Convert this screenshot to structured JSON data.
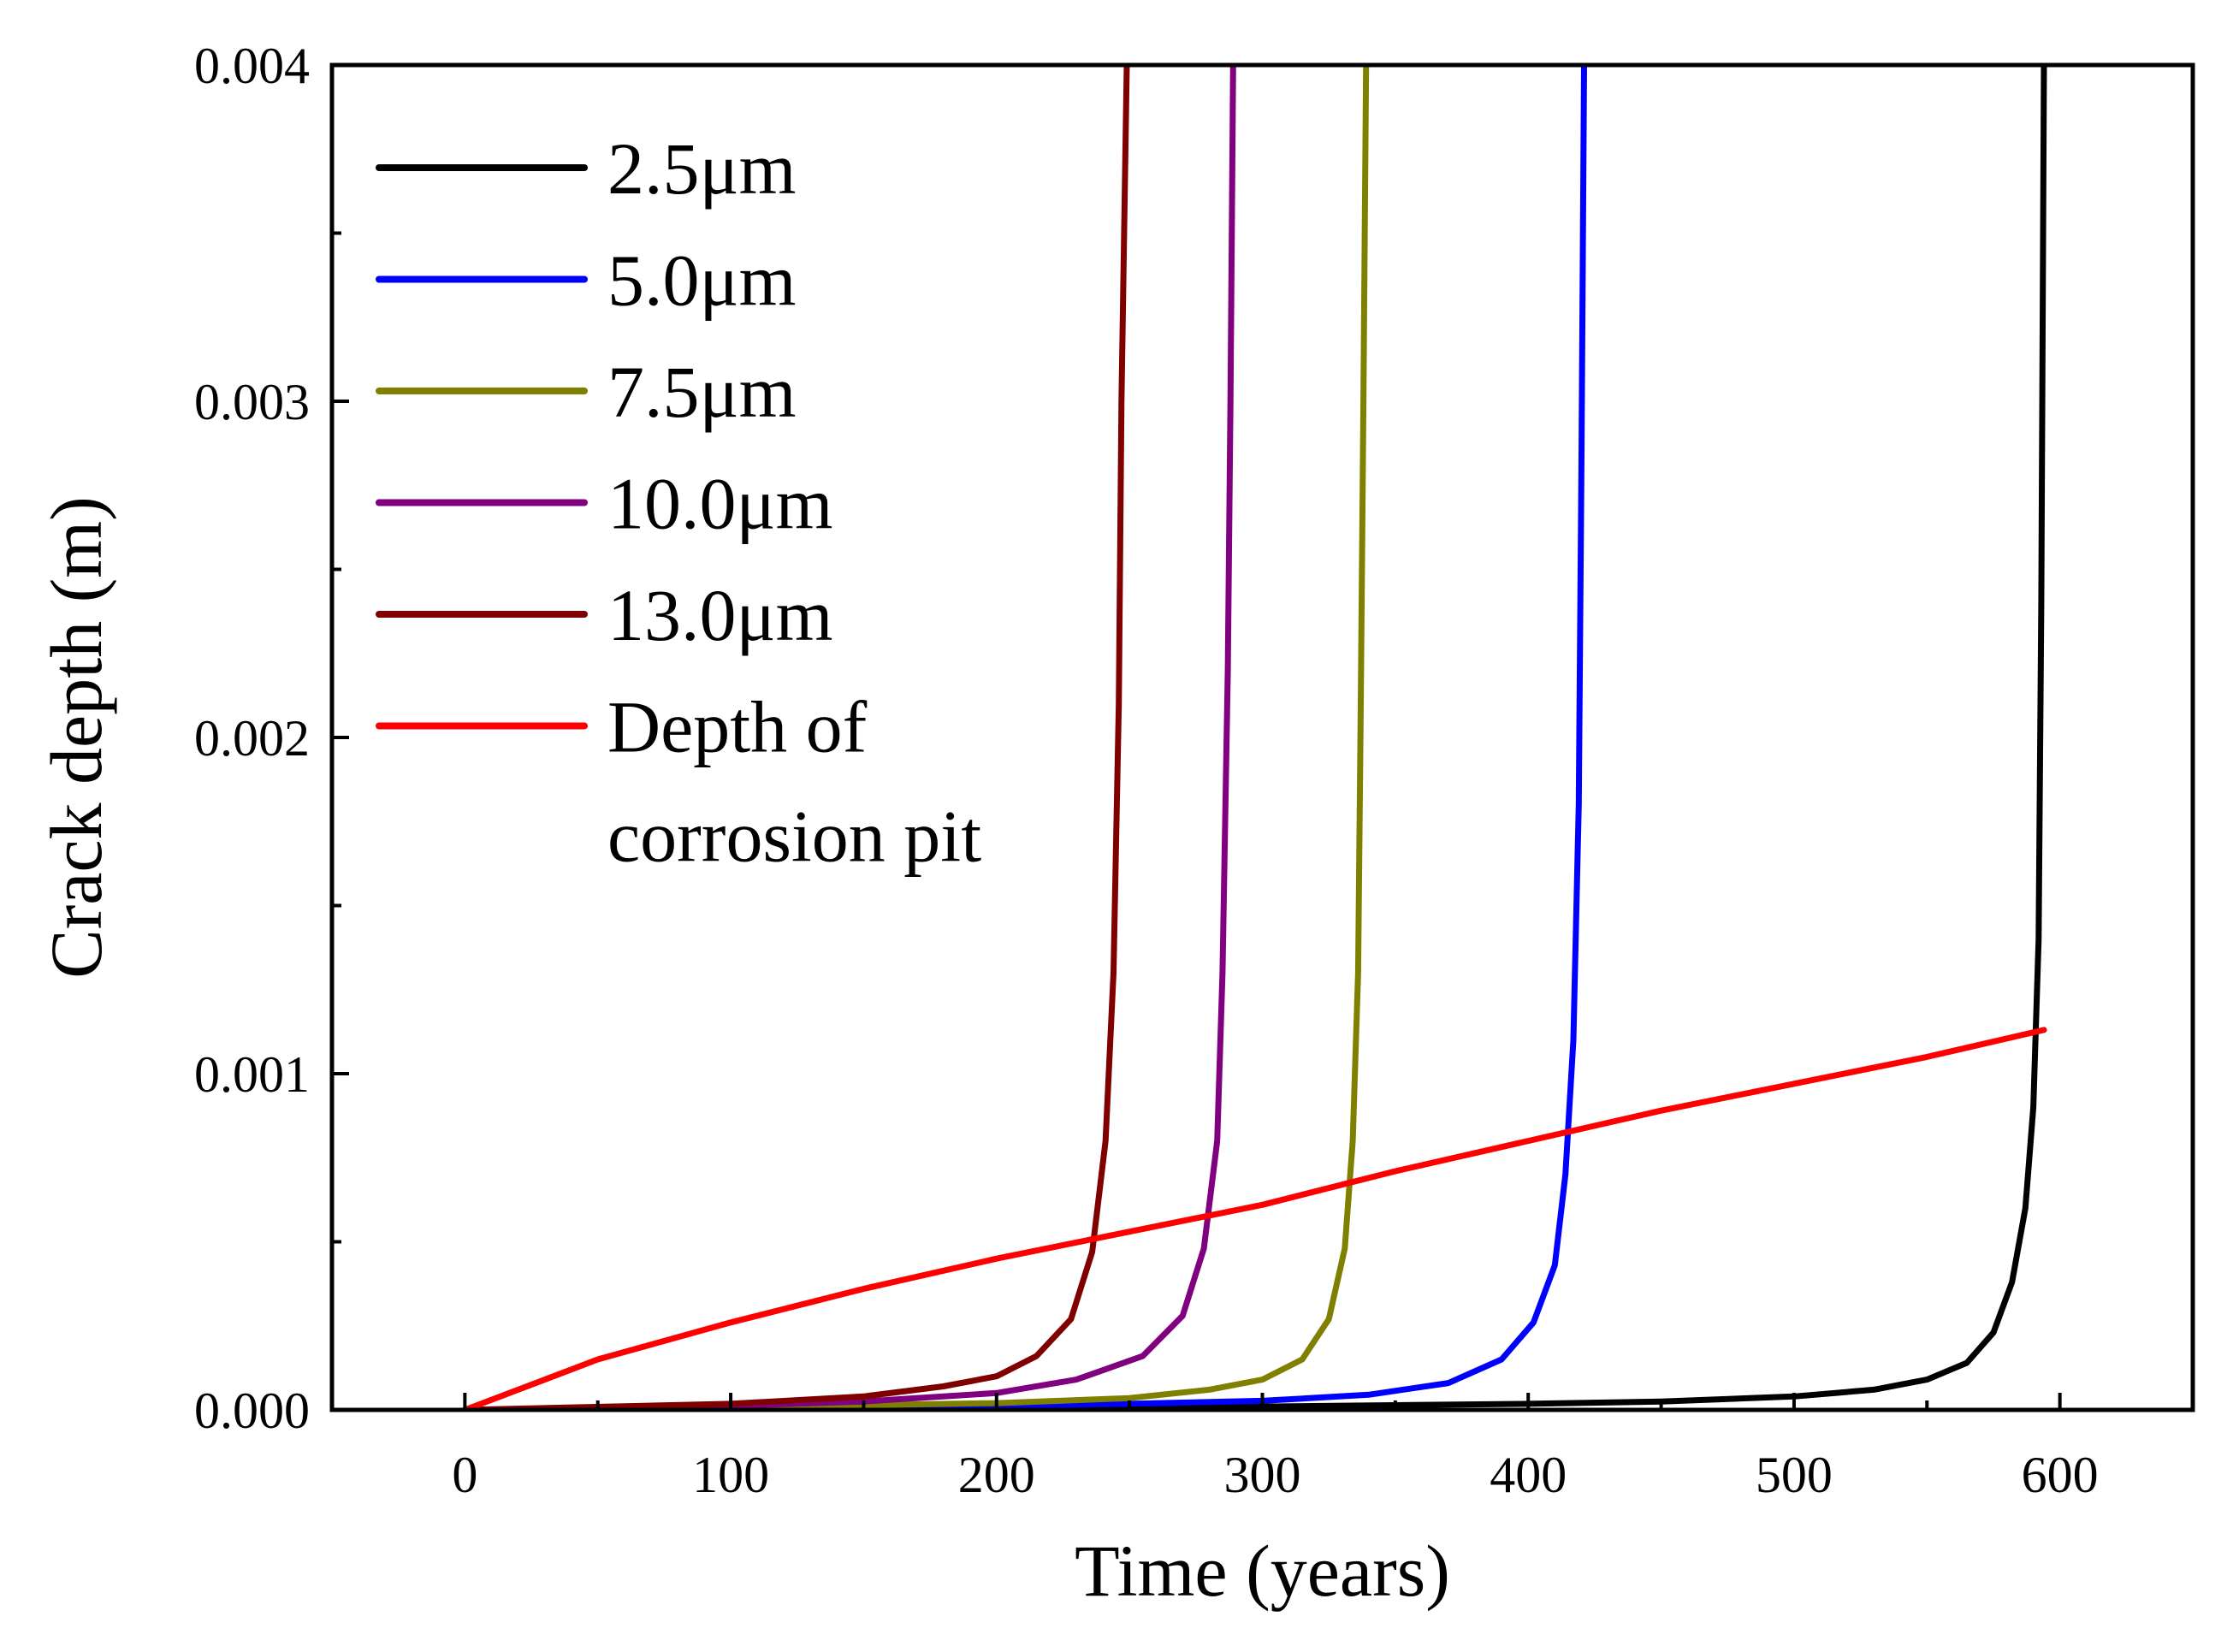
{
  "chart_data": {
    "type": "line",
    "title": "",
    "xlabel": "Time (years)",
    "ylabel": "Crack depth (m)",
    "xlim": [
      -50,
      650
    ],
    "ylim": [
      0,
      0.004
    ],
    "xticks": [
      0,
      100,
      200,
      300,
      400,
      500,
      600
    ],
    "xtick_labels": [
      "0",
      "100",
      "200",
      "300",
      "400",
      "500",
      "600"
    ],
    "yticks": [
      0,
      0.001,
      0.002,
      0.003,
      0.004
    ],
    "ytick_labels": [
      "0.000",
      "0.001",
      "0.002",
      "0.003",
      "0.004"
    ],
    "grid": false,
    "legend_position": "top-left",
    "series": [
      {
        "name": "2.5μm",
        "color": "#000000",
        "x": [
          0,
          100,
          200,
          300,
          400,
          450,
          500,
          530,
          550,
          565,
          575,
          582,
          587,
          590,
          592,
          593,
          594
        ],
        "y": [
          0,
          2e-06,
          5e-06,
          1e-05,
          1.8e-05,
          2.5e-05,
          4e-05,
          6e-05,
          9e-05,
          0.00014,
          0.00023,
          0.00038,
          0.0006,
          0.0009,
          0.0014,
          0.0024,
          0.004
        ]
      },
      {
        "name": "5.0μm",
        "color": "#0000ff",
        "x": [
          0,
          100,
          200,
          250,
          300,
          340,
          370,
          390,
          402,
          410,
          414,
          417,
          419,
          420,
          421
        ],
        "y": [
          0,
          5e-06,
          1.2e-05,
          1.8e-05,
          2.7e-05,
          4.5e-05,
          8e-05,
          0.00015,
          0.00026,
          0.00043,
          0.0007,
          0.0011,
          0.0018,
          0.0028,
          0.004
        ]
      },
      {
        "name": "7.5μm",
        "color": "#808000",
        "x": [
          0,
          100,
          200,
          250,
          280,
          300,
          315,
          325,
          331,
          334,
          336,
          337,
          338,
          339
        ],
        "y": [
          0,
          8e-06,
          2e-05,
          3.5e-05,
          6e-05,
          9e-05,
          0.00015,
          0.00027,
          0.00048,
          0.0008,
          0.0013,
          0.0021,
          0.003,
          0.004
        ]
      },
      {
        "name": "10.0μm",
        "color": "#800080",
        "x": [
          0,
          100,
          150,
          200,
          230,
          255,
          270,
          278,
          283,
          285,
          287,
          288,
          289
        ],
        "y": [
          0,
          1.2e-05,
          2.5e-05,
          5e-05,
          9e-05,
          0.00016,
          0.00028,
          0.00048,
          0.0008,
          0.0013,
          0.0022,
          0.003,
          0.004
        ]
      },
      {
        "name": "13.0μm",
        "color": "#800000",
        "x": [
          0,
          100,
          150,
          180,
          200,
          215,
          228,
          236,
          241,
          244,
          246,
          247,
          248,
          249
        ],
        "y": [
          0,
          1.8e-05,
          4e-05,
          7e-05,
          0.0001,
          0.00016,
          0.00027,
          0.00047,
          0.0008,
          0.0013,
          0.0021,
          0.003,
          0.0035,
          0.004
        ]
      },
      {
        "name": "Depth of corrosion pit",
        "legend_lines": [
          "Depth of",
          "corrosion pit"
        ],
        "color": "#ff0000",
        "x": [
          0,
          50,
          100,
          150,
          200,
          250,
          300,
          350,
          400,
          450,
          500,
          550,
          594
        ],
        "y": [
          0,
          0.00015,
          0.00026,
          0.00036,
          0.00045,
          0.00053,
          0.00061,
          0.00071,
          0.0008,
          0.00089,
          0.00097,
          0.00105,
          0.00113
        ]
      }
    ]
  }
}
